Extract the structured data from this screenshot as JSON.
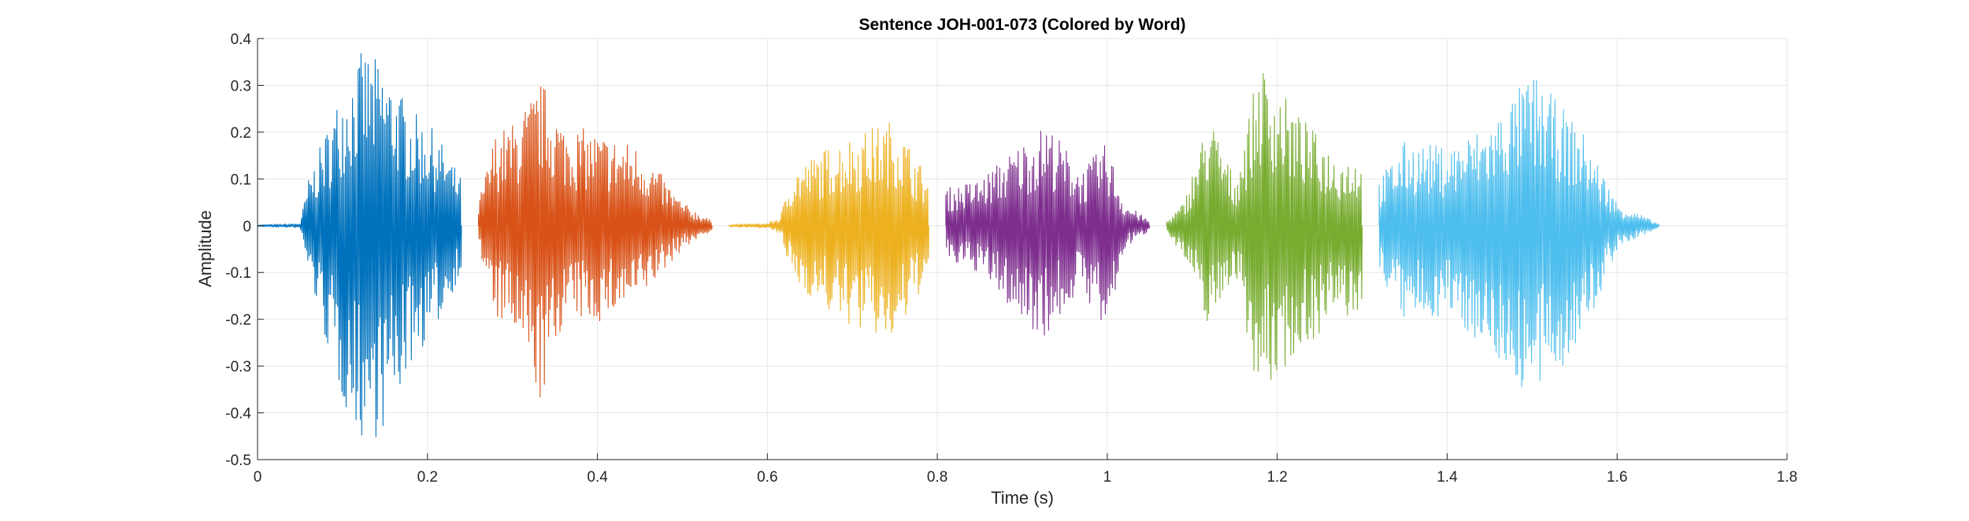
{
  "chart_data": {
    "type": "line",
    "title": "Sentence JOH-001-073 (Colored by Word)",
    "xlabel": "Time (s)",
    "ylabel": "Amplitude",
    "xlim": [
      0,
      1.8
    ],
    "ylim": [
      -0.5,
      0.4
    ],
    "xticks": [
      0,
      0.2,
      0.4,
      0.6,
      0.8,
      1,
      1.2,
      1.4,
      1.6,
      1.8
    ],
    "xtick_labels": [
      "0",
      "0.2",
      "0.4",
      "0.6",
      "0.8",
      "1",
      "1.2",
      "1.4",
      "1.6",
      "1.8"
    ],
    "yticks": [
      0.4,
      0.3,
      0.2,
      0.1,
      0,
      -0.1,
      -0.2,
      -0.3,
      -0.4,
      -0.5
    ],
    "ytick_labels": [
      "0.4",
      "0.3",
      "0.2",
      "0.1",
      "0",
      "-0.1",
      "-0.2",
      "-0.3",
      "-0.4",
      "-0.5"
    ],
    "grid": true,
    "legend": "none",
    "series": [
      {
        "color": "#0072BD",
        "x_range": [
          0,
          0.24
        ],
        "envelope": [
          {
            "t": 0,
            "pos": 0.002,
            "neg": -0.002
          },
          {
            "t": 0.05,
            "pos": 0.005,
            "neg": -0.005
          },
          {
            "t": 0.06,
            "pos": 0.1,
            "neg": -0.1
          },
          {
            "t": 0.08,
            "pos": 0.2,
            "neg": -0.25
          },
          {
            "t": 0.1,
            "pos": 0.3,
            "neg": -0.38
          },
          {
            "t": 0.125,
            "pos": 0.38,
            "neg": -0.47
          },
          {
            "t": 0.15,
            "pos": 0.34,
            "neg": -0.44
          },
          {
            "t": 0.18,
            "pos": 0.25,
            "neg": -0.3
          },
          {
            "t": 0.21,
            "pos": 0.2,
            "neg": -0.22
          },
          {
            "t": 0.24,
            "pos": 0.1,
            "neg": -0.1
          }
        ]
      },
      {
        "color": "#D95319",
        "x_range": [
          0.26,
          0.535
        ],
        "envelope": [
          {
            "t": 0.26,
            "pos": 0.05,
            "neg": -0.05
          },
          {
            "t": 0.28,
            "pos": 0.2,
            "neg": -0.2
          },
          {
            "t": 0.3,
            "pos": 0.22,
            "neg": -0.23
          },
          {
            "t": 0.335,
            "pos": 0.31,
            "neg": -0.39
          },
          {
            "t": 0.36,
            "pos": 0.22,
            "neg": -0.2
          },
          {
            "t": 0.4,
            "pos": 0.2,
            "neg": -0.21
          },
          {
            "t": 0.45,
            "pos": 0.17,
            "neg": -0.16
          },
          {
            "t": 0.5,
            "pos": 0.05,
            "neg": -0.05
          },
          {
            "t": 0.535,
            "pos": 0.01,
            "neg": -0.01
          }
        ]
      },
      {
        "color": "#EDB120",
        "x_range": [
          0.555,
          0.79
        ],
        "envelope": [
          {
            "t": 0.555,
            "pos": 0.003,
            "neg": -0.003
          },
          {
            "t": 0.6,
            "pos": 0.005,
            "neg": -0.005
          },
          {
            "t": 0.615,
            "pos": 0.02,
            "neg": -0.02
          },
          {
            "t": 0.63,
            "pos": 0.12,
            "neg": -0.12
          },
          {
            "t": 0.68,
            "pos": 0.18,
            "neg": -0.2
          },
          {
            "t": 0.75,
            "pos": 0.23,
            "neg": -0.26
          },
          {
            "t": 0.79,
            "pos": 0.1,
            "neg": -0.1
          }
        ]
      },
      {
        "color": "#7E2F8E",
        "x_range": [
          0.81,
          1.05
        ],
        "envelope": [
          {
            "t": 0.81,
            "pos": 0.08,
            "neg": -0.08
          },
          {
            "t": 0.85,
            "pos": 0.1,
            "neg": -0.1
          },
          {
            "t": 0.9,
            "pos": 0.18,
            "neg": -0.21
          },
          {
            "t": 0.93,
            "pos": 0.22,
            "neg": -0.24
          },
          {
            "t": 0.97,
            "pos": 0.12,
            "neg": -0.13
          },
          {
            "t": 1.0,
            "pos": 0.18,
            "neg": -0.25
          },
          {
            "t": 1.02,
            "pos": 0.05,
            "neg": -0.05
          },
          {
            "t": 1.05,
            "pos": 0.01,
            "neg": -0.01
          }
        ]
      },
      {
        "color": "#77AC30",
        "x_range": [
          1.07,
          1.3
        ],
        "envelope": [
          {
            "t": 1.07,
            "pos": 0.01,
            "neg": -0.01
          },
          {
            "t": 1.09,
            "pos": 0.05,
            "neg": -0.07
          },
          {
            "t": 1.12,
            "pos": 0.24,
            "neg": -0.22
          },
          {
            "t": 1.15,
            "pos": 0.1,
            "neg": -0.1
          },
          {
            "t": 1.18,
            "pos": 0.35,
            "neg": -0.38
          },
          {
            "t": 1.22,
            "pos": 0.25,
            "neg": -0.28
          },
          {
            "t": 1.27,
            "pos": 0.15,
            "neg": -0.2
          },
          {
            "t": 1.3,
            "pos": 0.15,
            "neg": -0.2
          }
        ]
      },
      {
        "color": "#4DBEEE",
        "x_range": [
          1.32,
          1.65
        ],
        "envelope": [
          {
            "t": 1.32,
            "pos": 0.1,
            "neg": -0.1
          },
          {
            "t": 1.35,
            "pos": 0.18,
            "neg": -0.21
          },
          {
            "t": 1.4,
            "pos": 0.17,
            "neg": -0.19
          },
          {
            "t": 1.45,
            "pos": 0.22,
            "neg": -0.27
          },
          {
            "t": 1.5,
            "pos": 0.33,
            "neg": -0.38
          },
          {
            "t": 1.56,
            "pos": 0.2,
            "neg": -0.25
          },
          {
            "t": 1.6,
            "pos": 0.05,
            "neg": -0.05
          },
          {
            "t": 1.65,
            "pos": 0.003,
            "neg": -0.003
          }
        ]
      }
    ]
  }
}
